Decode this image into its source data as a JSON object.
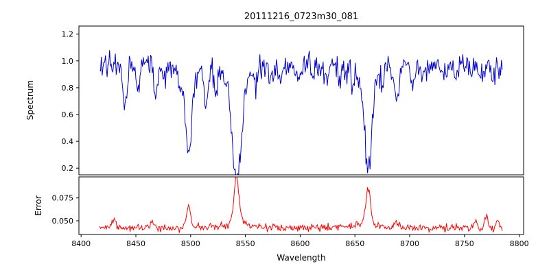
{
  "figure": {
    "background": "#ffffff"
  },
  "chart_data": {
    "type": "line",
    "title": "20111216_0723m30_081",
    "xlabel": "Wavelength",
    "x_range": [
      8417,
      8785
    ],
    "xlim": [
      8398,
      8804
    ],
    "x_ticks": [
      8400,
      8450,
      8500,
      8550,
      8600,
      8650,
      8700,
      8750,
      8800
    ],
    "x_tick_labels": [
      "8400",
      "8450",
      "8500",
      "8550",
      "8600",
      "8650",
      "8700",
      "8750",
      "8800"
    ],
    "grid": false,
    "legend": "none",
    "panels": [
      {
        "name": "spectrum",
        "ylabel": "Spectrum",
        "ylim": [
          0.15,
          1.26
        ],
        "y_ticks": [
          0.2,
          0.4,
          0.6,
          0.8,
          1.0,
          1.2
        ],
        "y_tick_labels": [
          "0.2",
          "0.4",
          "0.6",
          "0.8",
          "1.0",
          "1.2"
        ],
        "color": "#0000cd",
        "continuum_level": 0.965,
        "noise_sigma": 0.048,
        "absorption_lines": [
          {
            "center": 8498,
            "depth": 0.57,
            "width": 3.2
          },
          {
            "center": 8498,
            "depth": 0.06,
            "width": 9.0
          },
          {
            "center": 8542,
            "depth": 0.74,
            "width": 4.2
          },
          {
            "center": 8542,
            "depth": 0.12,
            "width": 11.0
          },
          {
            "center": 8662,
            "depth": 0.66,
            "width": 3.6
          },
          {
            "center": 8662,
            "depth": 0.08,
            "width": 9.0
          },
          {
            "center": 8440,
            "depth": 0.28,
            "width": 1.8
          },
          {
            "center": 8452,
            "depth": 0.16,
            "width": 1.6
          },
          {
            "center": 8468,
            "depth": 0.2,
            "width": 1.8
          },
          {
            "center": 8477,
            "depth": 0.13,
            "width": 1.5
          },
          {
            "center": 8490,
            "depth": 0.1,
            "width": 1.5
          },
          {
            "center": 8514,
            "depth": 0.26,
            "width": 1.9
          },
          {
            "center": 8523,
            "depth": 0.13,
            "width": 1.6
          },
          {
            "center": 8560,
            "depth": 0.1,
            "width": 1.5
          },
          {
            "center": 8572,
            "depth": 0.09,
            "width": 1.4
          },
          {
            "center": 8582,
            "depth": 0.13,
            "width": 1.6
          },
          {
            "center": 8598,
            "depth": 0.11,
            "width": 1.5
          },
          {
            "center": 8611,
            "depth": 0.09,
            "width": 1.4
          },
          {
            "center": 8624,
            "depth": 0.08,
            "width": 1.4
          },
          {
            "center": 8637,
            "depth": 0.09,
            "width": 1.4
          },
          {
            "center": 8648,
            "depth": 0.11,
            "width": 1.5
          },
          {
            "center": 8675,
            "depth": 0.11,
            "width": 1.5
          },
          {
            "center": 8688,
            "depth": 0.27,
            "width": 1.9
          },
          {
            "center": 8702,
            "depth": 0.14,
            "width": 1.6
          },
          {
            "center": 8713,
            "depth": 0.11,
            "width": 1.5
          },
          {
            "center": 8730,
            "depth": 0.09,
            "width": 1.4
          },
          {
            "center": 8742,
            "depth": 0.11,
            "width": 1.5
          },
          {
            "center": 8757,
            "depth": 0.08,
            "width": 1.4
          },
          {
            "center": 8764,
            "depth": 0.1,
            "width": 1.5
          },
          {
            "center": 8776,
            "depth": 0.11,
            "width": 1.5
          }
        ]
      },
      {
        "name": "error",
        "ylabel": "Error",
        "ylim": [
          0.035,
          0.098
        ],
        "y_ticks": [
          0.05,
          0.075
        ],
        "y_tick_labels": [
          "0.050",
          "0.075"
        ],
        "color": "#ff0000",
        "baseline_level": 0.0425,
        "noise_sigma": 0.002,
        "peaks": [
          {
            "center": 8430,
            "amp": 0.009,
            "width": 1.8
          },
          {
            "center": 8465,
            "amp": 0.007,
            "width": 1.8
          },
          {
            "center": 8498,
            "amp": 0.023,
            "width": 1.9
          },
          {
            "center": 8542,
            "amp": 0.051,
            "width": 2.2
          },
          {
            "center": 8542,
            "amp": 0.006,
            "width": 8.0
          },
          {
            "center": 8662,
            "amp": 0.038,
            "width": 2.2
          },
          {
            "center": 8662,
            "amp": 0.005,
            "width": 8.0
          },
          {
            "center": 8688,
            "amp": 0.006,
            "width": 2.0
          },
          {
            "center": 8760,
            "amp": 0.007,
            "width": 1.4
          },
          {
            "center": 8770,
            "amp": 0.015,
            "width": 1.4
          },
          {
            "center": 8780,
            "amp": 0.008,
            "width": 1.4
          }
        ]
      }
    ]
  }
}
